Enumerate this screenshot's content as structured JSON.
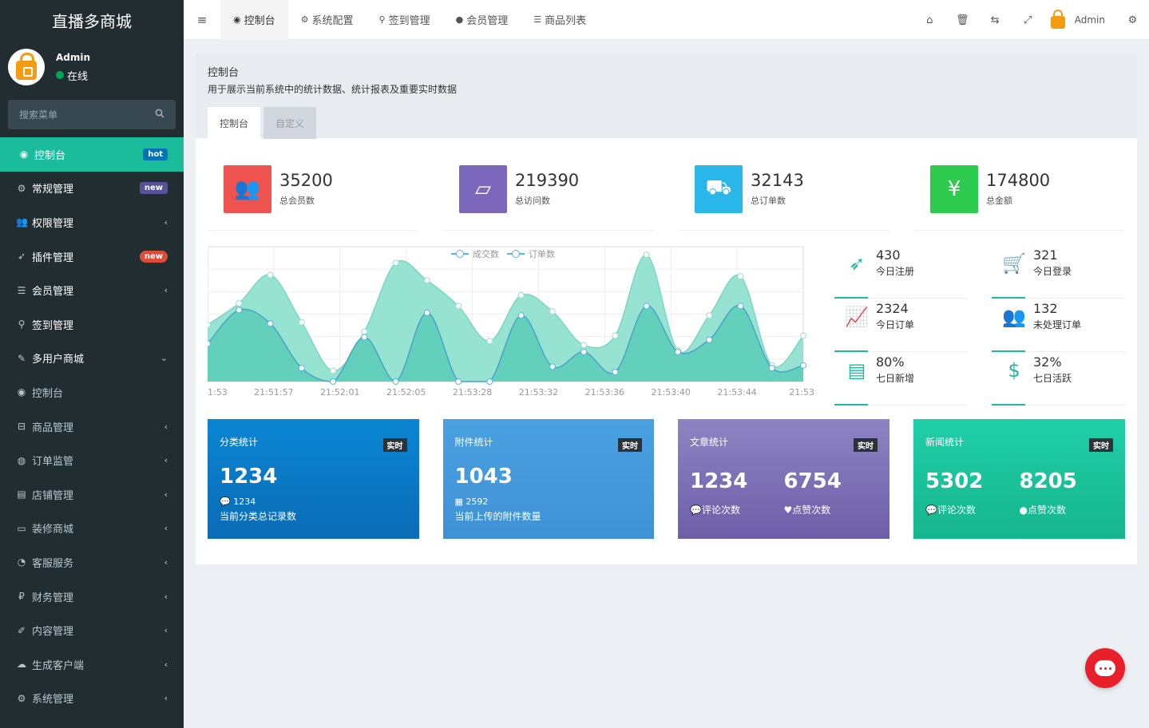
{
  "brand": "直播多商城",
  "user": {
    "name": "Admin",
    "status": "在线"
  },
  "search": {
    "placeholder": "搜索菜单"
  },
  "sidebar": {
    "items": [
      {
        "icon": "dashboard-icon",
        "glyph": "◉",
        "label": "控制台",
        "badge": "hot",
        "badge_color": "blue",
        "active": true
      },
      {
        "icon": "cogs-icon",
        "glyph": "⚙",
        "label": "常规管理",
        "badge": "new",
        "badge_color": "purple"
      },
      {
        "icon": "users-icon",
        "glyph": "👥",
        "label": "权限管理",
        "chevron": "‹"
      },
      {
        "icon": "rocket-icon",
        "glyph": "➶",
        "label": "插件管理",
        "badge": "new",
        "badge_color": "red"
      },
      {
        "icon": "list-icon",
        "glyph": "☰",
        "label": "会员管理",
        "chevron": "‹"
      },
      {
        "icon": "map-marker-icon",
        "glyph": "⚲",
        "label": "签到管理"
      },
      {
        "icon": "magic-icon",
        "glyph": "✎",
        "label": "多用户商城",
        "chevron": "⌄"
      },
      {
        "icon": "dashboard-icon",
        "glyph": "◉",
        "label": "控制台",
        "dim": true
      },
      {
        "icon": "cart-icon",
        "glyph": "⊟",
        "label": "商品管理",
        "chevron": "‹",
        "dim": true
      },
      {
        "icon": "eye-icon",
        "glyph": "◍",
        "label": "订单监管",
        "chevron": "‹",
        "dim": true
      },
      {
        "icon": "store-icon",
        "glyph": "▤",
        "label": "店铺管理",
        "chevron": "‹",
        "dim": true
      },
      {
        "icon": "desktop-icon",
        "glyph": "▭",
        "label": "装修商城",
        "chevron": "‹",
        "dim": true
      },
      {
        "icon": "comments-icon",
        "glyph": "◔",
        "label": "客服服务",
        "chevron": "‹",
        "dim": true
      },
      {
        "icon": "ruble-icon",
        "glyph": "₽",
        "label": "财务管理",
        "chevron": "‹",
        "dim": true
      },
      {
        "icon": "edit-icon",
        "glyph": "✐",
        "label": "内容管理",
        "chevron": "‹",
        "dim": true
      },
      {
        "icon": "cloud-icon",
        "glyph": "☁",
        "label": "生成客户端",
        "chevron": "‹",
        "dim": true
      },
      {
        "icon": "gear-icon",
        "glyph": "⚙",
        "label": "系统管理",
        "chevron": "‹",
        "dim": true
      }
    ]
  },
  "topnav": {
    "tabs": [
      {
        "icon": "dashboard-icon",
        "glyph": "◉",
        "label": "控制台",
        "active": true
      },
      {
        "icon": "gear-icon",
        "glyph": "⚙",
        "label": "系统配置"
      },
      {
        "icon": "map-marker-icon",
        "glyph": "⚲",
        "label": "签到管理"
      },
      {
        "icon": "user-icon",
        "glyph": "●",
        "label": "会员管理"
      },
      {
        "icon": "list-icon",
        "glyph": "☰",
        "label": "商品列表"
      }
    ],
    "admin": "Admin"
  },
  "header": {
    "title": "控制台",
    "description": "用于展示当前系统中的统计数据、统计报表及重要实时数据",
    "tabs": [
      "控制台",
      "自定义"
    ]
  },
  "stats": [
    {
      "value": "35200",
      "label": "总会员数",
      "color": "#ef5350",
      "icon": "users-icon",
      "glyph": "👥"
    },
    {
      "value": "219390",
      "label": "总访问数",
      "color": "#7b68bd",
      "icon": "book-icon",
      "glyph": "▱"
    },
    {
      "value": "32143",
      "label": "总订单数",
      "color": "#29b6e8",
      "icon": "shopping-bag-icon",
      "glyph": "⛟"
    },
    {
      "value": "174800",
      "label": "总金额",
      "color": "#2dcc4f",
      "icon": "yen-icon",
      "glyph": "¥"
    }
  ],
  "mini_stats": [
    {
      "value": "430",
      "label": "今日注册",
      "icon": "rocket-icon",
      "glyph": "➶"
    },
    {
      "value": "321",
      "label": "今日登录",
      "icon": "cart-icon",
      "glyph": "🛒"
    },
    {
      "value": "2324",
      "label": "今日订单",
      "icon": "area-chart-icon",
      "glyph": "📈"
    },
    {
      "value": "132",
      "label": "未处理订单",
      "icon": "users-icon",
      "glyph": "👥"
    },
    {
      "value": "80%",
      "label": "七日新增",
      "icon": "list-alt-icon",
      "glyph": "▤"
    },
    {
      "value": "32%",
      "label": "七日活跃",
      "icon": "dollar-icon",
      "glyph": "$"
    }
  ],
  "panels": [
    {
      "title": "分类统计",
      "tag": "实时",
      "value": "1234",
      "sub_icon": "💬",
      "sub": "1234",
      "desc": "当前分类总记录数"
    },
    {
      "title": "附件统计",
      "tag": "实时",
      "value": "1043",
      "sub_icon": "▦",
      "sub": "2592",
      "desc": "当前上传的附件数量"
    },
    {
      "title": "文章统计",
      "tag": "实时",
      "left_value": "1234",
      "left_label": "评论次数",
      "right_value": "6754",
      "right_label": "点赞次数"
    },
    {
      "title": "新闻统计",
      "tag": "实时",
      "left_value": "5302",
      "left_label": "评论次数",
      "right_value": "8205",
      "right_label": "点赞次数"
    }
  ],
  "chart_data": {
    "type": "area",
    "x_ticks": [
      "1:53",
      "21:51:57",
      "21:52:01",
      "21:52:05",
      "21:53:28",
      "21:53:32",
      "21:53:36",
      "21:53:40",
      "21:53:44",
      "21:53:"
    ],
    "series": [
      {
        "name": "成交数",
        "color": "#8be0cc",
        "values": [
          42,
          58,
          79,
          44,
          8,
          37,
          88,
          75,
          56,
          30,
          64,
          52,
          27,
          34,
          94,
          23,
          49,
          78,
          12,
          34
        ]
      },
      {
        "name": "订单数",
        "color": "#5fcfb9",
        "values": [
          28,
          53,
          43,
          10,
          0,
          33,
          0,
          51,
          0,
          0,
          49,
          11,
          22,
          7,
          56,
          22,
          31,
          56,
          10,
          12
        ]
      }
    ],
    "ylim": [
      0,
      100
    ],
    "grid": true,
    "legend": "top-center"
  }
}
